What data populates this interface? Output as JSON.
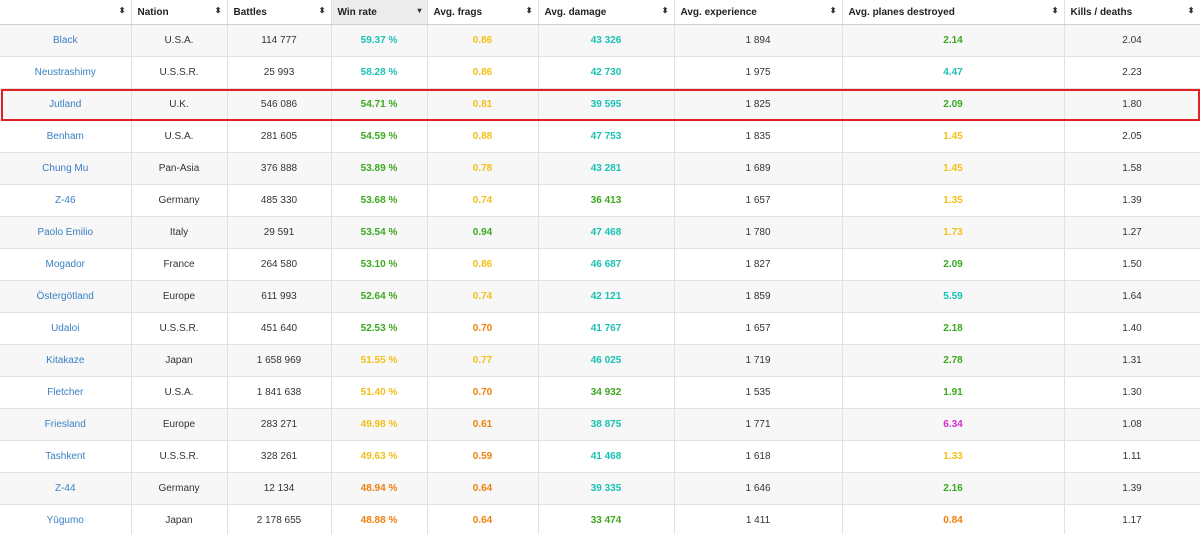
{
  "columns": [
    {
      "label": "",
      "active": false
    },
    {
      "label": "Nation",
      "active": false
    },
    {
      "label": "Battles",
      "active": false
    },
    {
      "label": "Win rate",
      "active": true
    },
    {
      "label": "Avg. frags",
      "active": false
    },
    {
      "label": "Avg. damage",
      "active": false
    },
    {
      "label": "Avg. experience",
      "active": false
    },
    {
      "label": "Avg. planes destroyed",
      "active": false
    },
    {
      "label": "Kills / deaths",
      "active": false
    }
  ],
  "sort_glyph": "⬍",
  "active_sort_glyph": "▾",
  "colors": {
    "teal": "#19c2b4",
    "green": "#3aa81d",
    "yellow": "#f4bf17",
    "orange": "#f07f0c",
    "purple": "#d42cd1",
    "link": "#3b7fc4",
    "highlight": "#e02025"
  },
  "highlighted_row": "Jutland",
  "rows": [
    {
      "ship": "Black",
      "nation": "U.S.A.",
      "battles": "114 777",
      "winrate": "59.37 %",
      "winrate_c": "teal",
      "frags": "0.86",
      "frags_c": "yellow",
      "damage": "43 326",
      "damage_c": "teal",
      "exp": "1 894",
      "planes": "2.14",
      "planes_c": "green",
      "kd": "2.04"
    },
    {
      "ship": "Neustrashimy",
      "nation": "U.S.S.R.",
      "battles": "25 993",
      "winrate": "58.28 %",
      "winrate_c": "teal",
      "frags": "0.86",
      "frags_c": "yellow",
      "damage": "42 730",
      "damage_c": "teal",
      "exp": "1 975",
      "planes": "4.47",
      "planes_c": "teal",
      "kd": "2.23"
    },
    {
      "ship": "Jutland",
      "nation": "U.K.",
      "battles": "546 086",
      "winrate": "54.71 %",
      "winrate_c": "green",
      "frags": "0.81",
      "frags_c": "yellow",
      "damage": "39 595",
      "damage_c": "teal",
      "exp": "1 825",
      "planes": "2.09",
      "planes_c": "green",
      "kd": "1.80"
    },
    {
      "ship": "Benham",
      "nation": "U.S.A.",
      "battles": "281 605",
      "winrate": "54.59 %",
      "winrate_c": "green",
      "frags": "0.88",
      "frags_c": "yellow",
      "damage": "47 753",
      "damage_c": "teal",
      "exp": "1 835",
      "planes": "1.45",
      "planes_c": "yellow",
      "kd": "2.05"
    },
    {
      "ship": "Chung Mu",
      "nation": "Pan-Asia",
      "battles": "376 888",
      "winrate": "53.89 %",
      "winrate_c": "green",
      "frags": "0.78",
      "frags_c": "yellow",
      "damage": "43 281",
      "damage_c": "teal",
      "exp": "1 689",
      "planes": "1.45",
      "planes_c": "yellow",
      "kd": "1.58"
    },
    {
      "ship": "Z-46",
      "nation": "Germany",
      "battles": "485 330",
      "winrate": "53.68 %",
      "winrate_c": "green",
      "frags": "0.74",
      "frags_c": "yellow",
      "damage": "36 413",
      "damage_c": "green",
      "exp": "1 657",
      "planes": "1.35",
      "planes_c": "yellow",
      "kd": "1.39"
    },
    {
      "ship": "Paolo Emilio",
      "nation": "Italy",
      "battles": "29 591",
      "winrate": "53.54 %",
      "winrate_c": "green",
      "frags": "0.94",
      "frags_c": "green",
      "damage": "47 468",
      "damage_c": "teal",
      "exp": "1 780",
      "planes": "1.73",
      "planes_c": "yellow",
      "kd": "1.27"
    },
    {
      "ship": "Mogador",
      "nation": "France",
      "battles": "264 580",
      "winrate": "53.10 %",
      "winrate_c": "green",
      "frags": "0.86",
      "frags_c": "yellow",
      "damage": "46 687",
      "damage_c": "teal",
      "exp": "1 827",
      "planes": "2.09",
      "planes_c": "green",
      "kd": "1.50"
    },
    {
      "ship": "Östergötland",
      "nation": "Europe",
      "battles": "611 993",
      "winrate": "52.64 %",
      "winrate_c": "green",
      "frags": "0.74",
      "frags_c": "yellow",
      "damage": "42 121",
      "damage_c": "teal",
      "exp": "1 859",
      "planes": "5.59",
      "planes_c": "teal",
      "kd": "1.64"
    },
    {
      "ship": "Udaloi",
      "nation": "U.S.S.R.",
      "battles": "451 640",
      "winrate": "52.53 %",
      "winrate_c": "green",
      "frags": "0.70",
      "frags_c": "orange",
      "damage": "41 767",
      "damage_c": "teal",
      "exp": "1 657",
      "planes": "2.18",
      "planes_c": "green",
      "kd": "1.40"
    },
    {
      "ship": "Kitakaze",
      "nation": "Japan",
      "battles": "1 658 969",
      "winrate": "51.55 %",
      "winrate_c": "yellow",
      "frags": "0.77",
      "frags_c": "yellow",
      "damage": "46 025",
      "damage_c": "teal",
      "exp": "1 719",
      "planes": "2.78",
      "planes_c": "green",
      "kd": "1.31"
    },
    {
      "ship": "Fletcher",
      "nation": "U.S.A.",
      "battles": "1 841 638",
      "winrate": "51.40 %",
      "winrate_c": "yellow",
      "frags": "0.70",
      "frags_c": "orange",
      "damage": "34 932",
      "damage_c": "green",
      "exp": "1 535",
      "planes": "1.91",
      "planes_c": "green",
      "kd": "1.30"
    },
    {
      "ship": "Friesland",
      "nation": "Europe",
      "battles": "283 271",
      "winrate": "49.98 %",
      "winrate_c": "yellow",
      "frags": "0.61",
      "frags_c": "orange",
      "damage": "38 875",
      "damage_c": "teal",
      "exp": "1 771",
      "planes": "6.34",
      "planes_c": "purple",
      "kd": "1.08"
    },
    {
      "ship": "Tashkent",
      "nation": "U.S.S.R.",
      "battles": "328 261",
      "winrate": "49.63 %",
      "winrate_c": "yellow",
      "frags": "0.59",
      "frags_c": "orange",
      "damage": "41 468",
      "damage_c": "teal",
      "exp": "1 618",
      "planes": "1.33",
      "planes_c": "yellow",
      "kd": "1.11"
    },
    {
      "ship": "Z-44",
      "nation": "Germany",
      "battles": "12 134",
      "winrate": "48.94 %",
      "winrate_c": "orange",
      "frags": "0.64",
      "frags_c": "orange",
      "damage": "39 335",
      "damage_c": "teal",
      "exp": "1 646",
      "planes": "2.16",
      "planes_c": "green",
      "kd": "1.39"
    },
    {
      "ship": "Yūgumo",
      "nation": "Japan",
      "battles": "2 178 655",
      "winrate": "48.88 %",
      "winrate_c": "orange",
      "frags": "0.64",
      "frags_c": "orange",
      "damage": "33 474",
      "damage_c": "green",
      "exp": "1 411",
      "planes": "0.84",
      "planes_c": "orange",
      "kd": "1.17"
    }
  ]
}
